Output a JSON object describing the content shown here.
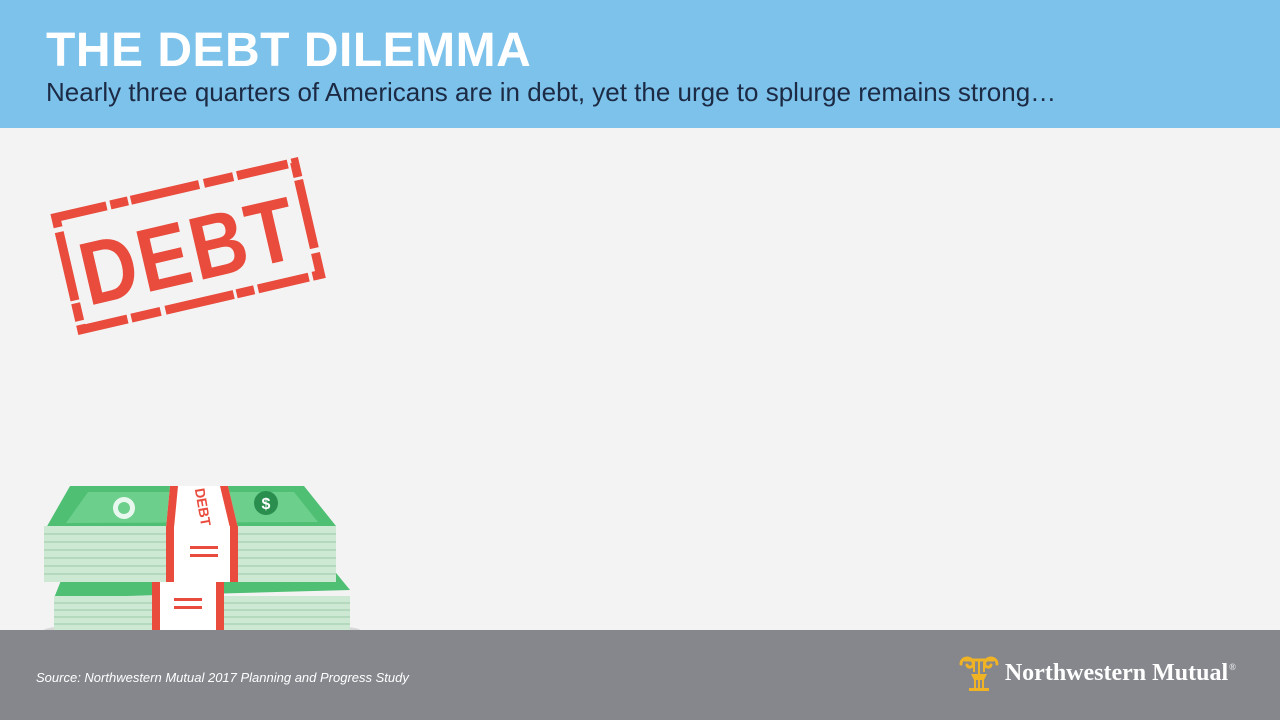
{
  "header": {
    "title": "THE DEBT DILEMMA",
    "subtitle": "Nearly three quarters of Americans are in debt, yet the urge to splurge remains strong…"
  },
  "illustrations": {
    "stamp_text": "DEBT",
    "money_band_text": "DEBT",
    "bill_symbol": "$"
  },
  "footer": {
    "source": "Source: Northwestern Mutual 2017 Planning and Progress Study",
    "brand_name": "Northwestern Mutual",
    "registered_mark": "®"
  },
  "colors": {
    "header_bg": "#7cc2eb",
    "body_bg": "#f3f3f3",
    "footer_bg": "#85878d",
    "stamp_red": "#e94b3c",
    "money_green": "#4fbf74",
    "brand_gold": "#f0b323",
    "subtitle_text": "#1c2a44"
  },
  "icons": {
    "brand_logo": "capital-column-icon",
    "stamp": "debt-stamp-icon",
    "money": "money-stack-icon"
  }
}
